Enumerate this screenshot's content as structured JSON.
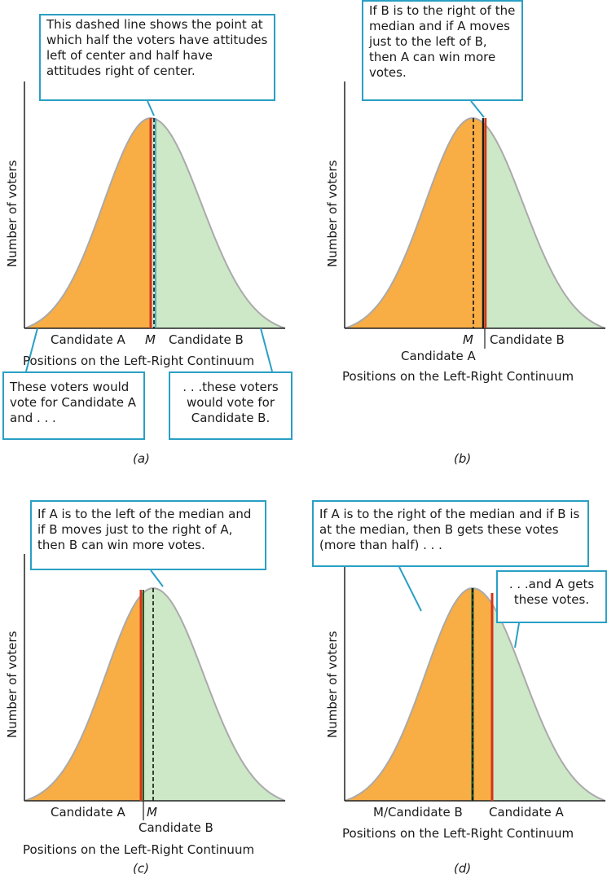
{
  "panels": [
    {
      "id": "a",
      "ylabel": "Number of voters",
      "xlabel": "Positions on the Left-Right Continuum",
      "label_left": "Candidate A",
      "label_m": "M",
      "label_right": "Candidate B",
      "callout_top": "This dashed line shows the point at which half the voters have attitudes left of center and half have attitudes right of center.",
      "callout_left": "These voters would vote for Candidate A and . . .",
      "callout_right": ". . .these voters would vote for Candidate B.",
      "tag": "(a)"
    },
    {
      "id": "b",
      "ylabel": "Number of voters",
      "xlabel": "Positions on the Left-Right Continuum",
      "label_m": "M",
      "label_right": "Candidate B",
      "label_below": "Candidate A",
      "callout_top": "If B is to the right of the median and if A moves just to the left of B, then A can win more votes.",
      "tag": "(b)"
    },
    {
      "id": "c",
      "ylabel": "Number of voters",
      "xlabel": "Positions on the Left-Right Continuum",
      "label_left": "Candidate A",
      "label_m": "M",
      "label_below": "Candidate B",
      "callout_top": "If A is to the left of the median and if B moves just to the right of A, then B can win more votes.",
      "tag": "(c)"
    },
    {
      "id": "d",
      "ylabel": "Number of voters",
      "xlabel": "Positions on the Left-Right Continuum",
      "label_left": "M/Candidate B",
      "label_right": "Candidate A",
      "callout_top": "If A is to the right of the median and if B is at the median, then B gets these votes (more than half) . . .",
      "callout_right": ". . .and A gets these votes.",
      "tag": "(d)"
    }
  ],
  "colors": {
    "left_fill": "#f8ad45",
    "right_fill": "#cde8c7",
    "curve_stroke": "#aaaaaa",
    "candidate_a_line": "#d63318",
    "candidate_b_line": "#1a5a32",
    "callout_border": "#2a9fc4"
  }
}
